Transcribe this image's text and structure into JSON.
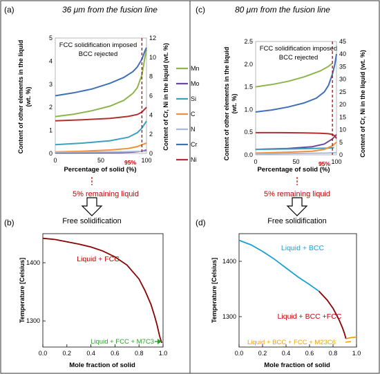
{
  "colors": {
    "Mn": "#8db44a",
    "Mo": "#6a4a9a",
    "Si": "#3aa0c0",
    "C": "#f0903a",
    "N": "#a9b8d8",
    "Cr": "#3e6fb8",
    "Ni": "#b03030",
    "dash": "#c00000",
    "red_text": "#c00000",
    "green_text": "#2aa02a",
    "orange_text": "#f0a000",
    "bcc_text": "#1a9fd8",
    "dark_red": "#8b0000"
  },
  "panels": {
    "a": {
      "label": "(a)",
      "title": "36 μm from the fusion line"
    },
    "c": {
      "label": "(c)",
      "title": "80 μm from the fusion line"
    },
    "b": {
      "label": "(b)"
    },
    "d": {
      "label": "(d)"
    }
  },
  "shared": {
    "annotation_line1": "FCC solidification imposed",
    "annotation_line2": "BCC rejected",
    "pct_label": "95%",
    "remaining_liquid": "5% remaining liquid",
    "free_solidification": "Free solidification"
  },
  "legend": [
    "Mn",
    "Mo",
    "Si",
    "C",
    "N",
    "Cr",
    "Ni"
  ],
  "chart_data": [
    {
      "id": "a",
      "type": "line",
      "xlabel": "Percentage of solid (%)",
      "ylabel": "Content of other elements in the liquid (wt. %)",
      "y2label": "Content of Cr, Ni in the liquid (wt. %)",
      "xlim": [
        0,
        100
      ],
      "ylim": [
        0,
        5
      ],
      "y2lim": [
        0,
        12
      ],
      "xticks": [
        0,
        50,
        100
      ],
      "yticks": [
        0,
        1,
        2,
        3,
        4,
        5
      ],
      "y2ticks": [
        0,
        2,
        4,
        6,
        8,
        10,
        12
      ],
      "marker_x": 95,
      "series": [
        {
          "name": "Mn",
          "axis": "left",
          "x": [
            0,
            20,
            40,
            60,
            75,
            85,
            90,
            95,
            98,
            100
          ],
          "y": [
            1.6,
            1.7,
            1.85,
            2.05,
            2.3,
            2.6,
            2.85,
            3.4,
            4.1,
            4.5
          ]
        },
        {
          "name": "Mo",
          "axis": "left",
          "x": [
            0,
            40,
            70,
            85,
            95,
            100
          ],
          "y": [
            0.02,
            0.03,
            0.04,
            0.06,
            0.1,
            0.15
          ]
        },
        {
          "name": "Si",
          "axis": "left",
          "x": [
            0,
            30,
            60,
            80,
            90,
            95,
            100
          ],
          "y": [
            0.38,
            0.45,
            0.55,
            0.7,
            0.9,
            1.1,
            1.4
          ]
        },
        {
          "name": "C",
          "axis": "left",
          "x": [
            0,
            30,
            60,
            80,
            90,
            95,
            100
          ],
          "y": [
            0.07,
            0.1,
            0.15,
            0.22,
            0.3,
            0.38,
            0.45
          ]
        },
        {
          "name": "N",
          "axis": "left",
          "x": [
            0,
            40,
            70,
            90,
            100
          ],
          "y": [
            0.05,
            0.06,
            0.07,
            0.09,
            0.1
          ]
        },
        {
          "name": "Cr",
          "axis": "right",
          "x": [
            0,
            20,
            40,
            60,
            75,
            85,
            90,
            95,
            98,
            100
          ],
          "y": [
            6.0,
            6.3,
            6.7,
            7.3,
            7.9,
            8.5,
            9.0,
            9.8,
            10.6,
            11.0
          ]
        },
        {
          "name": "Ni",
          "axis": "right",
          "x": [
            0,
            30,
            60,
            80,
            90,
            95,
            100
          ],
          "y": [
            3.4,
            3.5,
            3.65,
            3.85,
            4.05,
            4.3,
            4.8
          ]
        }
      ]
    },
    {
      "id": "c",
      "type": "line",
      "xlabel": "Percentage of solid (%)",
      "ylabel": "Content of other elements in the liquid (wt. %)",
      "y2label": "Content of Cr, Ni in the liquid (wt. %)",
      "xlim": [
        0,
        100
      ],
      "ylim": [
        0,
        2.5
      ],
      "y2lim": [
        0,
        45
      ],
      "xticks": [
        0,
        50,
        100
      ],
      "yticks": [
        0,
        0.5,
        1.0,
        1.5,
        2.0,
        2.5
      ],
      "y2ticks": [
        0,
        5,
        10,
        15,
        20,
        25,
        30,
        35,
        40,
        45
      ],
      "marker_x": 95,
      "series": [
        {
          "name": "Mn",
          "axis": "left",
          "x": [
            0,
            20,
            40,
            60,
            80,
            90,
            95
          ],
          "y": [
            1.5,
            1.55,
            1.62,
            1.72,
            1.85,
            1.95,
            2.02
          ]
        },
        {
          "name": "Mo",
          "axis": "left",
          "x": [
            0,
            40,
            70,
            85,
            95,
            100
          ],
          "y": [
            0.12,
            0.14,
            0.18,
            0.24,
            0.35,
            0.45
          ]
        },
        {
          "name": "Si",
          "axis": "left",
          "x": [
            0,
            40,
            70,
            90,
            97
          ],
          "y": [
            0.12,
            0.13,
            0.14,
            0.15,
            0.16
          ]
        },
        {
          "name": "C",
          "axis": "left",
          "x": [
            0,
            40,
            70,
            85,
            95,
            100
          ],
          "y": [
            0.04,
            0.06,
            0.08,
            0.12,
            0.2,
            0.28
          ]
        },
        {
          "name": "N",
          "axis": "left",
          "x": [
            0,
            50,
            90,
            100
          ],
          "y": [
            0.02,
            0.03,
            0.04,
            0.05
          ]
        },
        {
          "name": "Cr",
          "axis": "right",
          "x": [
            0,
            20,
            40,
            60,
            75,
            85,
            90,
            95,
            98,
            100
          ],
          "y": [
            17.0,
            17.8,
            19.0,
            20.6,
            22.5,
            25.0,
            27.5,
            32.0,
            36.0,
            40.0
          ]
        },
        {
          "name": "Ni",
          "axis": "right",
          "x": [
            0,
            30,
            60,
            80,
            90,
            95,
            98,
            100
          ],
          "y": [
            8.8,
            8.8,
            8.7,
            8.6,
            8.4,
            8.1,
            7.5,
            6.5
          ]
        }
      ]
    },
    {
      "id": "b",
      "type": "line",
      "xlabel": "Mole fraction of solid",
      "ylabel": "Temperature [Celsius]",
      "xlim": [
        0,
        1.0
      ],
      "ylim": [
        1255,
        1450
      ],
      "xticks": [
        0.0,
        0.2,
        0.4,
        0.6,
        0.8,
        1.0
      ],
      "yticks": [
        1300,
        1400
      ],
      "xtick_labels": [
        "0.0",
        "0.2",
        "0.4",
        "0.6",
        "0.8",
        "1.0"
      ],
      "region_labels": [
        "Liquid + FCC",
        "Liquid + FCC + M7C3"
      ],
      "series": [
        {
          "color_key": "dark_red",
          "x": [
            0,
            0.1,
            0.2,
            0.3,
            0.4,
            0.5,
            0.6,
            0.7,
            0.8,
            0.85,
            0.9,
            0.93,
            0.95,
            0.97,
            0.98,
            0.99
          ],
          "y": [
            1442,
            1440,
            1436,
            1432,
            1427,
            1420,
            1410,
            1396,
            1372,
            1352,
            1328,
            1308,
            1293,
            1275,
            1268,
            1262
          ]
        }
      ]
    },
    {
      "id": "d",
      "type": "line",
      "xlabel": "Mole fraction of solid",
      "ylabel": "Temperature [Celsius]",
      "xlim": [
        0,
        1.0
      ],
      "ylim": [
        1245,
        1450
      ],
      "xticks": [
        0.0,
        0.2,
        0.4,
        0.6,
        0.8,
        1.0
      ],
      "yticks": [
        1300,
        1400
      ],
      "xtick_labels": [
        "0.0",
        "0.2",
        "0.4",
        "0.6",
        "0.8",
        "1.0"
      ],
      "region_labels": [
        "Liquid + BCC",
        "Liquid + BCC +FCC",
        "Liquid + BCC + FCC + M23C6"
      ],
      "series": [
        {
          "color_key": "bcc_text",
          "x": [
            0,
            0.1,
            0.2,
            0.3,
            0.4,
            0.5,
            0.6,
            0.68
          ],
          "y": [
            1438,
            1430,
            1418,
            1404,
            1388,
            1372,
            1358,
            1346
          ]
        },
        {
          "color_key": "dark_red",
          "x": [
            0.68,
            0.75,
            0.8,
            0.85,
            0.88,
            0.9,
            0.91
          ],
          "y": [
            1346,
            1330,
            1315,
            1295,
            1280,
            1268,
            1260
          ]
        },
        {
          "color_key": "orange_text",
          "x": [
            0.91,
            0.95,
            1.0
          ],
          "y": [
            1260,
            1262,
            1263
          ]
        }
      ]
    }
  ]
}
